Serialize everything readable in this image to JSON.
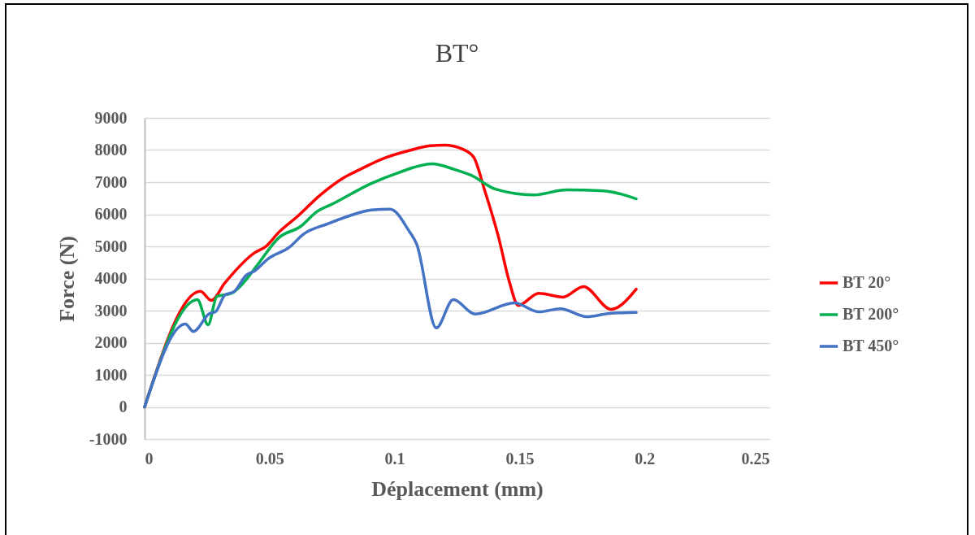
{
  "chart_data": {
    "type": "line",
    "title": "BT°",
    "xlabel": "Déplacement (mm)",
    "ylabel": "Force (N)",
    "xlim": [
      0,
      0.25
    ],
    "xticks": [
      0,
      0.05,
      0.1,
      0.15,
      0.2,
      0.25
    ],
    "ylim": [
      -1000,
      9000
    ],
    "yticks": [
      -1000,
      0,
      1000,
      2000,
      3000,
      4000,
      5000,
      6000,
      7000,
      8000,
      9000
    ],
    "grid": "y",
    "legend": "right",
    "line_style": "solid",
    "series": [
      {
        "name": "BT 20°",
        "color": "#ff0000",
        "x": [
          0,
          0.0223,
          0.0267,
          0.032,
          0.044,
          0.0484,
          0.0537,
          0.0614,
          0.07,
          0.0797,
          0.086,
          0.095,
          0.1057,
          0.1144,
          0.12,
          0.1274,
          0.1317,
          0.136,
          0.1415,
          0.146,
          0.1495,
          0.1577,
          0.1674,
          0.1756,
          0.1866,
          0.1967
        ],
        "values": [
          0,
          3600,
          3320,
          3850,
          4800,
          4990,
          5440,
          5950,
          6580,
          7140,
          7390,
          7720,
          7980,
          8130,
          8150,
          8020,
          7770,
          6760,
          5320,
          3880,
          3160,
          3540,
          3420,
          3750,
          3040,
          3670
        ]
      },
      {
        "name": "BT 200°",
        "color": "#00b050",
        "x": [
          0,
          0.0211,
          0.0254,
          0.0289,
          0.0348,
          0.0397,
          0.0452,
          0.0537,
          0.0624,
          0.0689,
          0.0754,
          0.0907,
          0.1014,
          0.115,
          0.1242,
          0.1307,
          0.1404,
          0.1557,
          0.1687,
          0.1837,
          0.1967
        ],
        "values": [
          0,
          3340,
          2560,
          3440,
          3540,
          3880,
          4430,
          5270,
          5620,
          6080,
          6330,
          6960,
          7290,
          7570,
          7390,
          7210,
          6780,
          6600,
          6760,
          6730,
          6480
        ]
      },
      {
        "name": "BT 450°",
        "color": "#4472c4",
        "x": [
          0,
          0.0163,
          0.0195,
          0.026,
          0.0283,
          0.0322,
          0.0358,
          0.0406,
          0.0439,
          0.0494,
          0.0582,
          0.0634,
          0.0732,
          0.0819,
          0.0907,
          0.0982,
          0.1057,
          0.1089,
          0.1167,
          0.1235,
          0.1323,
          0.148,
          0.1577,
          0.1664,
          0.1769,
          0.186,
          0.1967
        ],
        "values": [
          0,
          2580,
          2350,
          2910,
          2960,
          3490,
          3590,
          4100,
          4230,
          4610,
          4990,
          5370,
          5700,
          5950,
          6130,
          6160,
          5490,
          5060,
          2460,
          3340,
          2890,
          3240,
          2960,
          3060,
          2810,
          2910,
          2940
        ]
      }
    ]
  }
}
